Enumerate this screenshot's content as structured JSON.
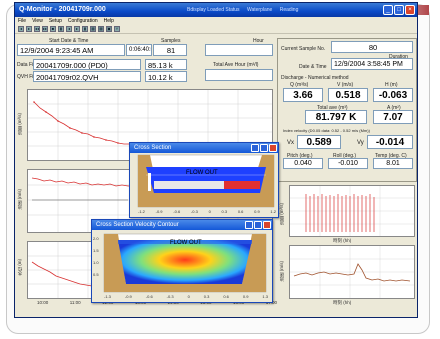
{
  "window": {
    "title": "Q-Monitor - 20041709r.000",
    "status_items": [
      "Bdisplay Loaded Status",
      "Waterplane",
      "Reading"
    ],
    "controls": [
      "_",
      "□",
      "×"
    ]
  },
  "menu": [
    "File",
    "View",
    "Setup",
    "Configuration",
    "Help"
  ],
  "toolbar_glyphs": [
    "◂",
    "▸",
    "◂◂",
    "▸▸",
    "■",
    "▮",
    "◂",
    "▸",
    "▮",
    "▦",
    "▦",
    "▣",
    "Y"
  ],
  "header": {
    "start_label": "Start Date & Time",
    "duration_label": "Samples",
    "start_value": "12/9/2004 9:23:45 AM",
    "elapsed_value": "0:06:40:00",
    "samples_value": "81",
    "hour_label": "Hour",
    "total_label": "Total Ave Hour (m³/l)",
    "data_file_label": "Data File",
    "data_file_value": "20041709r.000 (PD0)",
    "data_file_size": "85.13 k",
    "qvh_file_label": "QVH File",
    "qvh_file_value": "20041709r02.QVH",
    "qvh_file_size": "10.12 k"
  },
  "right_panel": {
    "current_sample_label": "Current Sample No.",
    "current_sample_value": "80",
    "duration_label": "Duration",
    "date_time_label": "Date & Time",
    "date_time_value": "12/9/2004 3:58:45 PM",
    "discharge_title": "Discharge - Numerical method",
    "q_label": "Q (m³/s)",
    "q_value": "3.66",
    "v_label": "V (m/s)",
    "v_value": "0.518",
    "h_label": "H (m)",
    "h_value": "-0.063",
    "total_label": "Total ave (m³)",
    "total_value": "81.797 K",
    "area_label": "A (m²)",
    "area_value": "7.07",
    "index_note": "Index velocity (D0.05 data: 0.52 - 0.52 m/s (Mm))",
    "vx_label": "Vx",
    "vx_value": "0.589",
    "vy_label": "Vy",
    "vy_value": "-0.014",
    "pitch_label": "Pitch (deg.)",
    "pitch_value": "0.040",
    "roll_label": "Roll (deg.)",
    "roll_value": "-0.010",
    "temp_label": "Temp (deg. C)",
    "temp_value": "8.01"
  },
  "plots": {
    "left_ylabels": [
      "流量 (m³/s)",
      "流速 (m/s)",
      "水位 (m)"
    ],
    "right_ylabels": [
      "流量 (m³/s)",
      "流速 (m/s)"
    ],
    "x_ticks": [
      "10:00",
      "11:00",
      "12:00",
      "13:00",
      "14:00",
      "15:00",
      "16:00",
      "17:00"
    ],
    "x_label": "時刻 (hh)"
  },
  "dialog_cross": {
    "title": "Cross Section",
    "flow_label": "FLOW OUT",
    "x_ticks": [
      "-1.2",
      "-0.9",
      "-0.6",
      "-0.3",
      "0",
      "0.3",
      "0.6",
      "0.9",
      "1.2"
    ]
  },
  "dialog_velocity": {
    "title": "Cross Section Velocity Contour",
    "flow_label": "FLOW OUT",
    "x_ticks": [
      "-1.3",
      "-0.9",
      "-0.6",
      "-0.3",
      "0",
      "0.3",
      "0.6",
      "0.9",
      "1.3"
    ],
    "y_ticks": [
      "2.0",
      "1.5",
      "1.0",
      "0.5"
    ]
  },
  "colors": {
    "titlebar": "#0a4ac8",
    "window_bg": "#ece9d8",
    "plot_line_red": "#d83030",
    "plot_line_brown": "#a0522d",
    "water_blue": "#1e40ff",
    "ground_brown": "#c89b55"
  }
}
